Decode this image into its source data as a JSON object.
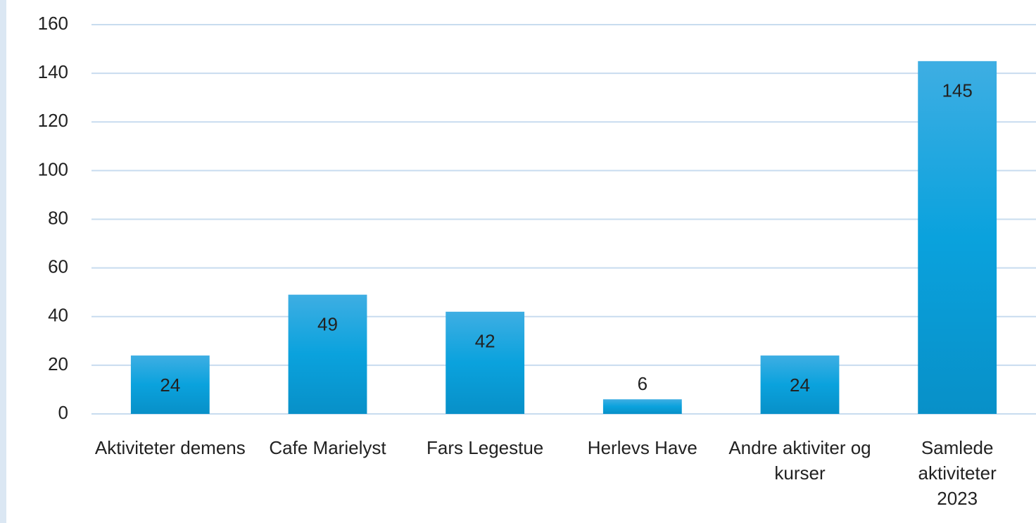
{
  "chart_data": {
    "type": "bar",
    "categories": [
      "Aktiviteter demens",
      "Cafe Marielyst",
      "Fars Legestue",
      "Herlevs Have",
      "Andre aktiviter og kurser",
      "Samlede aktiviteter 2023"
    ],
    "values": [
      24,
      49,
      42,
      6,
      24,
      145
    ],
    "color": "#0a9fd8",
    "ylim": [
      0,
      160
    ],
    "yticks": [
      0,
      20,
      40,
      60,
      80,
      100,
      120,
      140,
      160
    ],
    "grid": true
  }
}
